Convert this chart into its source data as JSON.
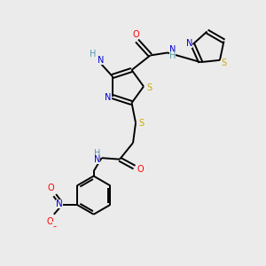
{
  "bg_color": "#ebebeb",
  "bond_color": "#000000",
  "atom_colors": {
    "N": "#0000cc",
    "O": "#ff0000",
    "S": "#ccaa00",
    "H": "#5599aa",
    "C": "#000000"
  }
}
